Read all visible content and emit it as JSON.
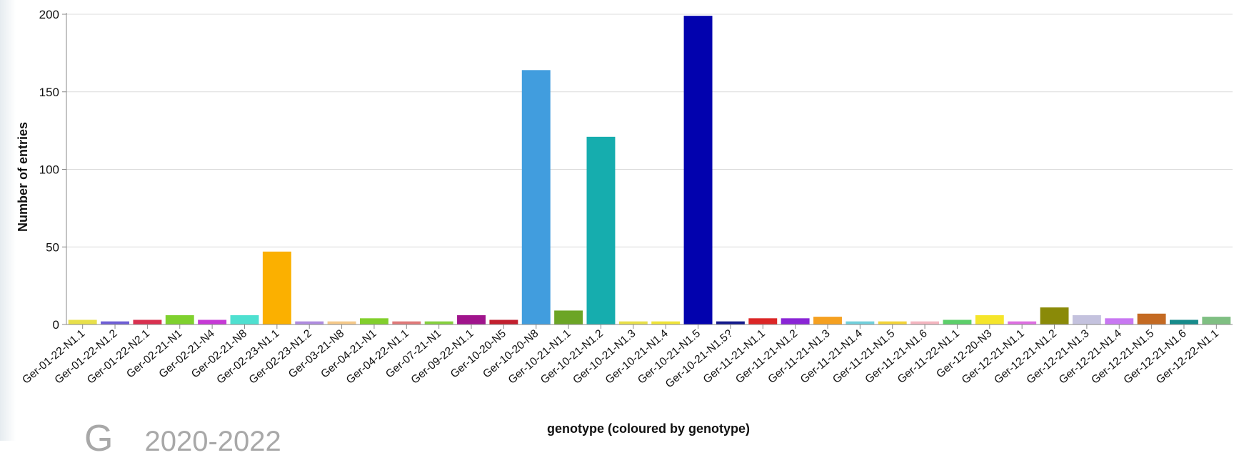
{
  "background_text": {
    "letter": "G",
    "years": "2020-2022"
  },
  "chart_data": {
    "type": "bar",
    "title": "",
    "xlabel": "genotype (coloured by genotype)",
    "ylabel": "Number of entries",
    "ylim": [
      0,
      200
    ],
    "yticks": [
      0,
      50,
      100,
      150,
      200
    ],
    "grid": true,
    "categories": [
      "Ger-01-22-N1.1",
      "Ger-01-22-N1.2",
      "Ger-01-22-N2.1",
      "Ger-02-21-N1",
      "Ger-02-21-N4",
      "Ger-02-21-N8",
      "Ger-02-23-N1.1",
      "Ger-02-23-N1.2",
      "Ger-03-21-N8",
      "Ger-04-21-N1",
      "Ger-04-22-N1.1",
      "Ger-07-21-N1",
      "Ger-09-22-N1.1",
      "Ger-10-20-N5",
      "Ger-10-20-N8",
      "Ger-10-21-N1.1",
      "Ger-10-21-N1.2",
      "Ger-10-21-N1.3",
      "Ger-10-21-N1.4",
      "Ger-10-21-N1.5",
      "Ger-10-21-N1.5?",
      "Ger-11-21-N1.1",
      "Ger-11-21-N1.2",
      "Ger-11-21-N1.3",
      "Ger-11-21-N1.4",
      "Ger-11-21-N1.5",
      "Ger-11-21-N1.6",
      "Ger-11-22-N1.1",
      "Ger-12-20-N3",
      "Ger-12-21-N1.1",
      "Ger-12-21-N1.2",
      "Ger-12-21-N1.3",
      "Ger-12-21-N1.4",
      "Ger-12-21-N1.5",
      "Ger-12-21-N1.6",
      "Ger-12-22-N1.1"
    ],
    "values": [
      3,
      2,
      3,
      6,
      3,
      6,
      47,
      2,
      2,
      4,
      2,
      2,
      6,
      3,
      164,
      9,
      121,
      2,
      2,
      199,
      2,
      4,
      4,
      5,
      2,
      2,
      2,
      3,
      6,
      2,
      11,
      6,
      4,
      7,
      3,
      5
    ],
    "colors": [
      "#e8e04a",
      "#6f5fd6",
      "#d9304f",
      "#7fd12e",
      "#c639d6",
      "#4ee0d0",
      "#fbb000",
      "#b08ce0",
      "#f5c98a",
      "#82cf2c",
      "#e07a7a",
      "#86d13f",
      "#a0148c",
      "#c21f2e",
      "#419dde",
      "#6ca526",
      "#16adae",
      "#e8e04a",
      "#efe43a",
      "#0202ae",
      "#151b8c",
      "#dc2626",
      "#8a25d6",
      "#f5a020",
      "#72d0dc",
      "#f3d43a",
      "#f4b6c0",
      "#5ccf6a",
      "#f5e52a",
      "#de70e2",
      "#8a8a08",
      "#c4c2de",
      "#c878f2",
      "#c46a22",
      "#168b8b",
      "#7fbf82"
    ]
  }
}
